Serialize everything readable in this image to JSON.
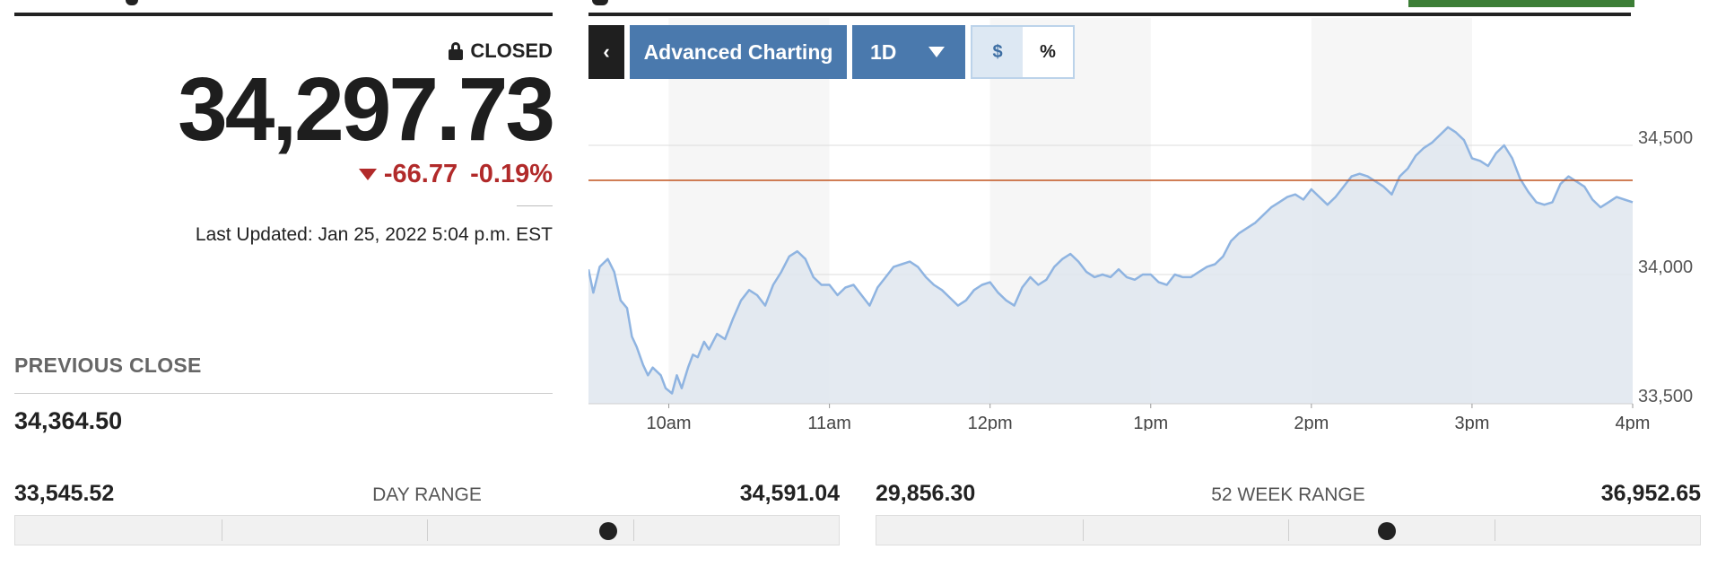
{
  "quote": {
    "status": "CLOSED",
    "price": "34,297.73",
    "change": "-66.77",
    "change_pct": "-0.19%",
    "direction": "down",
    "last_updated": "Last Updated: Jan 25, 2022 5:04 p.m. EST",
    "previous_close_label": "PREVIOUS CLOSE",
    "previous_close": "34,364.50"
  },
  "toolbar": {
    "back_label": "‹",
    "advanced_label": "Advanced Charting",
    "period_label": "1D",
    "dollar_label": "$",
    "percent_label": "%",
    "selected_mode": "$"
  },
  "colors": {
    "accent": "#4a79ad",
    "down": "#b12a2a",
    "line": "#8fb4e1",
    "fill": "#dfe6ef",
    "prev_close_line": "#c0541f"
  },
  "chart_data": {
    "type": "area",
    "x_ticks": [
      "10am",
      "11am",
      "12pm",
      "1pm",
      "2pm",
      "3pm",
      "4pm"
    ],
    "y_ticks": [
      "34,500",
      "34,000",
      "33,500"
    ],
    "ylim": [
      33500,
      34750
    ],
    "reference_line": 34364.5,
    "x_hours": [
      9.5,
      16
    ],
    "points": [
      [
        9.5,
        34020
      ],
      [
        9.53,
        33930
      ],
      [
        9.57,
        34030
      ],
      [
        9.62,
        34060
      ],
      [
        9.66,
        34010
      ],
      [
        9.7,
        33900
      ],
      [
        9.74,
        33870
      ],
      [
        9.77,
        33760
      ],
      [
        9.8,
        33720
      ],
      [
        9.84,
        33650
      ],
      [
        9.87,
        33610
      ],
      [
        9.9,
        33640
      ],
      [
        9.95,
        33610
      ],
      [
        9.98,
        33560
      ],
      [
        10.02,
        33540
      ],
      [
        10.05,
        33610
      ],
      [
        10.08,
        33560
      ],
      [
        10.12,
        33640
      ],
      [
        10.15,
        33690
      ],
      [
        10.18,
        33680
      ],
      [
        10.22,
        33740
      ],
      [
        10.25,
        33710
      ],
      [
        10.3,
        33770
      ],
      [
        10.35,
        33750
      ],
      [
        10.4,
        33830
      ],
      [
        10.45,
        33900
      ],
      [
        10.5,
        33940
      ],
      [
        10.55,
        33920
      ],
      [
        10.6,
        33880
      ],
      [
        10.65,
        33960
      ],
      [
        10.7,
        34010
      ],
      [
        10.75,
        34070
      ],
      [
        10.8,
        34090
      ],
      [
        10.85,
        34060
      ],
      [
        10.9,
        33990
      ],
      [
        10.95,
        33960
      ],
      [
        11.0,
        33960
      ],
      [
        11.05,
        33920
      ],
      [
        11.1,
        33950
      ],
      [
        11.15,
        33960
      ],
      [
        11.2,
        33920
      ],
      [
        11.25,
        33880
      ],
      [
        11.3,
        33950
      ],
      [
        11.35,
        33990
      ],
      [
        11.4,
        34030
      ],
      [
        11.45,
        34040
      ],
      [
        11.5,
        34050
      ],
      [
        11.55,
        34030
      ],
      [
        11.6,
        33990
      ],
      [
        11.65,
        33960
      ],
      [
        11.7,
        33940
      ],
      [
        11.75,
        33910
      ],
      [
        11.8,
        33880
      ],
      [
        11.85,
        33900
      ],
      [
        11.9,
        33940
      ],
      [
        11.95,
        33960
      ],
      [
        12.0,
        33970
      ],
      [
        12.05,
        33930
      ],
      [
        12.1,
        33900
      ],
      [
        12.15,
        33880
      ],
      [
        12.2,
        33950
      ],
      [
        12.25,
        33990
      ],
      [
        12.3,
        33960
      ],
      [
        12.35,
        33980
      ],
      [
        12.4,
        34030
      ],
      [
        12.45,
        34060
      ],
      [
        12.5,
        34080
      ],
      [
        12.55,
        34050
      ],
      [
        12.6,
        34010
      ],
      [
        12.65,
        33990
      ],
      [
        12.7,
        34000
      ],
      [
        12.75,
        33990
      ],
      [
        12.8,
        34020
      ],
      [
        12.85,
        33990
      ],
      [
        12.9,
        33980
      ],
      [
        12.95,
        34000
      ],
      [
        13.0,
        34000
      ],
      [
        13.05,
        33970
      ],
      [
        13.1,
        33960
      ],
      [
        13.15,
        34000
      ],
      [
        13.2,
        33990
      ],
      [
        13.25,
        33990
      ],
      [
        13.3,
        34010
      ],
      [
        13.35,
        34030
      ],
      [
        13.4,
        34040
      ],
      [
        13.45,
        34070
      ],
      [
        13.5,
        34130
      ],
      [
        13.55,
        34160
      ],
      [
        13.6,
        34180
      ],
      [
        13.65,
        34200
      ],
      [
        13.7,
        34230
      ],
      [
        13.75,
        34260
      ],
      [
        13.8,
        34280
      ],
      [
        13.85,
        34300
      ],
      [
        13.9,
        34310
      ],
      [
        13.95,
        34290
      ],
      [
        14.0,
        34330
      ],
      [
        14.05,
        34300
      ],
      [
        14.1,
        34270
      ],
      [
        14.15,
        34300
      ],
      [
        14.2,
        34340
      ],
      [
        14.25,
        34380
      ],
      [
        14.3,
        34390
      ],
      [
        14.35,
        34380
      ],
      [
        14.4,
        34360
      ],
      [
        14.45,
        34340
      ],
      [
        14.5,
        34310
      ],
      [
        14.55,
        34380
      ],
      [
        14.6,
        34410
      ],
      [
        14.65,
        34460
      ],
      [
        14.7,
        34490
      ],
      [
        14.75,
        34510
      ],
      [
        14.8,
        34540
      ],
      [
        14.85,
        34570
      ],
      [
        14.9,
        34550
      ],
      [
        14.95,
        34520
      ],
      [
        15.0,
        34450
      ],
      [
        15.05,
        34440
      ],
      [
        15.1,
        34420
      ],
      [
        15.15,
        34470
      ],
      [
        15.2,
        34500
      ],
      [
        15.25,
        34450
      ],
      [
        15.3,
        34370
      ],
      [
        15.35,
        34320
      ],
      [
        15.4,
        34280
      ],
      [
        15.45,
        34270
      ],
      [
        15.5,
        34280
      ],
      [
        15.55,
        34350
      ],
      [
        15.6,
        34380
      ],
      [
        15.65,
        34360
      ],
      [
        15.7,
        34340
      ],
      [
        15.75,
        34290
      ],
      [
        15.8,
        34260
      ],
      [
        15.85,
        34280
      ],
      [
        15.9,
        34300
      ],
      [
        15.95,
        34290
      ],
      [
        16.0,
        34280
      ]
    ]
  },
  "ranges": {
    "day": {
      "label": "DAY RANGE",
      "low": "33,545.52",
      "high": "34,591.04",
      "position": 0.72
    },
    "week52": {
      "label": "52 WEEK RANGE",
      "low": "29,856.30",
      "high": "36,952.65",
      "position": 0.62
    }
  }
}
